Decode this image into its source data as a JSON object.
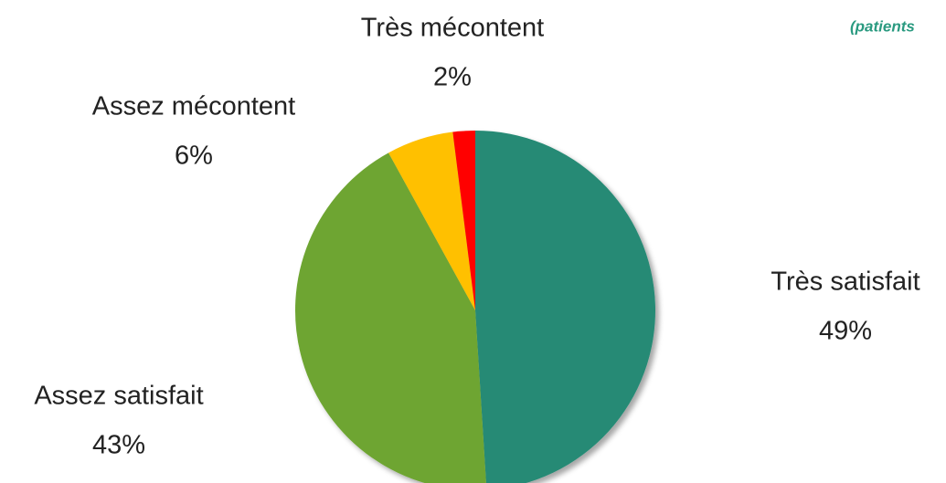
{
  "chart_data": {
    "type": "pie",
    "subtitle": "(patients",
    "categories": [
      "Très satisfait",
      "Assez satisfait",
      "Assez mécontent",
      "Très mécontent"
    ],
    "values": [
      49,
      43,
      6,
      2
    ],
    "value_labels": [
      "49%",
      "43%",
      "6%",
      "2%"
    ],
    "colors": [
      "#268a74",
      "#6ea531",
      "#ffc000",
      "#ff0000"
    ]
  }
}
